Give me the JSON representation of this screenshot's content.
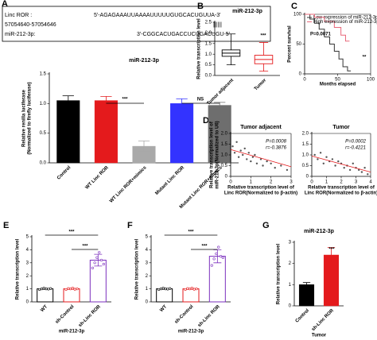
{
  "panel_labels": [
    "A",
    "B",
    "C",
    "D",
    "E",
    "F",
    "G"
  ],
  "sequence": {
    "linc_label": "Linc ROR :",
    "linc_seq": "5'-AGAGAAAUUAAAAUUUUUGUGCACUGUUA-3'",
    "site": "57054640-57054646",
    "pairing": "||||||",
    "mir_label": "miR-212-3p:",
    "mir_seq": "3'-CGGCACUGACCUCUGACUGU-5'"
  },
  "chart_data": [
    {
      "type": "bar",
      "title": "miR-212-3p",
      "ylabel": [
        "Relative renilla luciferase",
        "(Normalized to firefly luciferase)"
      ],
      "categories": [
        "Control",
        "WT Linc ROR",
        "WT Linc ROR+mimics",
        "Mutant Linc ROR",
        "Mutant Linc ROR+mimics"
      ],
      "values": [
        1.05,
        1.05,
        0.28,
        1.0,
        0.97
      ],
      "errors": [
        0.08,
        0.07,
        0.09,
        0.08,
        0.05
      ],
      "colors": [
        "#000000",
        "#e41a1c",
        "#a9a9a9",
        "#3333ff",
        "#6e6e6e"
      ],
      "ylim": [
        0,
        1.5
      ],
      "yticks": [
        {
          "value": 0,
          "label": "0.0"
        },
        0.5,
        {
          "value": 1,
          "label": "1.0"
        },
        1.5
      ],
      "annotations": [
        "***",
        "NS"
      ]
    },
    {
      "type": "box",
      "title": "miR-212-3p",
      "ylabel": [
        "Relative transcription level"
      ],
      "categories": [
        "Tumor adjacent",
        "Tumor"
      ],
      "boxes": [
        {
          "min": 0.5,
          "q1": 0.9,
          "median": 1.05,
          "q3": 1.2,
          "max": 1.95
        },
        {
          "min": 0.2,
          "q1": 0.55,
          "median": 0.75,
          "q3": 0.95,
          "max": 1.55
        }
      ],
      "colors": [
        "#000000",
        "#e41a1c"
      ],
      "ylim": [
        0,
        2.5
      ],
      "yticks": [
        {
          "value": 0,
          "label": "0.0"
        },
        0.5,
        {
          "value": 1,
          "label": "1.0"
        },
        1.5,
        {
          "value": 2,
          "label": "2.0"
        },
        2.5
      ],
      "annotations": [
        "***"
      ]
    },
    {
      "type": "line",
      "ylabel": [
        "Percent survival"
      ],
      "xlabel": [
        "Months elapsed"
      ],
      "series": [
        {
          "name": "Low expression of miR-212-3p",
          "color": "#333333",
          "x": [
            0,
            8,
            8,
            15,
            15,
            22,
            22,
            30,
            30,
            38,
            38,
            45,
            45,
            52,
            52,
            58,
            58,
            65,
            65,
            70
          ],
          "values": [
            100,
            100,
            92,
            92,
            85,
            85,
            75,
            75,
            62,
            62,
            50,
            50,
            38,
            38,
            25,
            25,
            12,
            12,
            5,
            5
          ]
        },
        {
          "name": "High expression of miR-212-3p",
          "color": "#e8687a",
          "x": [
            0,
            15,
            15,
            30,
            30,
            45,
            45,
            55,
            55,
            62,
            62,
            68
          ],
          "values": [
            100,
            100,
            95,
            95,
            88,
            88,
            78,
            78,
            65,
            65,
            55,
            55
          ]
        }
      ],
      "xlim": [
        0,
        100
      ],
      "xticks": [
        0,
        50,
        100
      ],
      "ylim": [
        0,
        100
      ],
      "yticks": [
        0,
        50,
        100
      ],
      "annotations": [
        "P=0.0071",
        "**"
      ]
    },
    {
      "type": "scatter",
      "title": "Tumor adjacent",
      "ylabel": [
        "Relative transcription level of",
        "miR-212-3p(Normalized to U6)"
      ],
      "xlabel": [
        "Relative transcription level of",
        "Linc ROR(Normalized to β-actin)"
      ],
      "x": [
        0.1,
        0.2,
        0.3,
        0.4,
        0.5,
        0.6,
        0.7,
        0.8,
        0.9,
        1.0,
        1.1,
        1.2,
        1.3,
        1.5,
        1.6,
        1.8,
        2.0,
        2.2,
        2.5,
        2.8
      ],
      "values": [
        1.4,
        1.1,
        1.6,
        0.9,
        1.2,
        1.0,
        1.3,
        0.8,
        1.1,
        0.7,
        0.9,
        1.0,
        0.6,
        0.8,
        0.5,
        0.7,
        0.6,
        0.4,
        0.5,
        0.3
      ],
      "trendline": {
        "x": [
          0,
          3
        ],
        "values": [
          1.25,
          0.45
        ]
      },
      "color": "#555555",
      "trend_color": "#e41a1c",
      "xlim": [
        0,
        3
      ],
      "xticks": [
        0,
        1,
        2,
        3
      ],
      "ylim": [
        0,
        2
      ],
      "yticks": [
        0,
        0.5,
        {
          "value": 1,
          "label": "1.0"
        },
        1.5,
        {
          "value": 2,
          "label": "2.0"
        }
      ],
      "annotations": [
        "P=0.0008",
        "r=-0.3876"
      ]
    },
    {
      "type": "scatter",
      "title": "Tumor",
      "ylabel": [
        "Relative transcription level of",
        "miR-212-3p(Normalized to U6)"
      ],
      "xlabel": [
        "Relative transcription level of",
        "Linc ROR(Normalized to β-actin)"
      ],
      "x": [
        0.2,
        0.4,
        0.6,
        0.8,
        1.0,
        1.2,
        1.4,
        1.6,
        1.8,
        2.0,
        2.2,
        2.4,
        2.6,
        2.8,
        3.0,
        3.2,
        3.4,
        3.6,
        3.8
      ],
      "values": [
        1.0,
        0.8,
        1.1,
        0.6,
        0.9,
        0.7,
        0.8,
        0.5,
        0.7,
        0.6,
        0.4,
        0.5,
        0.3,
        0.6,
        0.4,
        0.3,
        0.2,
        0.4,
        0.1
      ],
      "trendline": {
        "x": [
          0,
          4
        ],
        "values": [
          0.95,
          0.2
        ]
      },
      "color": "#555555",
      "trend_color": "#e41a1c",
      "xlim": [
        0,
        4
      ],
      "xticks": [
        0,
        1,
        2,
        3,
        4
      ],
      "ylim": [
        0,
        2
      ],
      "yticks": [
        0,
        0.5,
        {
          "value": 1,
          "label": "1.0"
        },
        1.5,
        {
          "value": 2,
          "label": "2.0"
        }
      ],
      "annotations": [
        "P=0.0002",
        "r=-0.4221"
      ]
    },
    {
      "type": "bar",
      "hollow": true,
      "ylabel": [
        "Relative transcription level"
      ],
      "xlabel": [
        "miR-212-3p"
      ],
      "categories": [
        "WT",
        "sh-Control",
        "sh-Linc ROR"
      ],
      "values": [
        1.0,
        1.0,
        3.2
      ],
      "errors": [
        0.04,
        0.04,
        0.45
      ],
      "points": [
        [
          0.95,
          1.0,
          1.05,
          1.0,
          0.98,
          1.02
        ],
        [
          0.95,
          1.02,
          1.0,
          1.05,
          0.97,
          1.0
        ],
        [
          2.6,
          3.0,
          3.4,
          3.8,
          3.2,
          2.9
        ]
      ],
      "colors": [
        "#000000",
        "#e41a1c",
        "#7b2fbe"
      ],
      "ylim": [
        0,
        5
      ],
      "yticks": [
        0,
        1,
        2,
        3,
        4,
        5
      ],
      "annotations": [
        "***",
        "***"
      ]
    },
    {
      "type": "bar",
      "hollow": true,
      "ylabel": [
        "Relative transcription level"
      ],
      "xlabel": [
        "miR-212-3p"
      ],
      "categories": [
        "WT",
        "sh-Control",
        "sh-Linc ROR"
      ],
      "values": [
        1.0,
        1.0,
        3.5
      ],
      "errors": [
        0.04,
        0.04,
        0.5
      ],
      "points": [
        [
          0.95,
          1.0,
          1.05,
          1.0,
          0.98,
          1.02
        ],
        [
          0.95,
          1.02,
          1.0,
          1.05,
          0.97,
          1.0
        ],
        [
          2.8,
          3.3,
          3.7,
          4.2,
          3.5,
          3.4
        ]
      ],
      "colors": [
        "#000000",
        "#e41a1c",
        "#7b2fbe"
      ],
      "ylim": [
        0,
        5
      ],
      "yticks": [
        0,
        1,
        2,
        3,
        4,
        5
      ],
      "annotations": [
        "***",
        "***"
      ]
    },
    {
      "type": "bar",
      "title": "miR-212-3p",
      "ylabel": [
        "Relative transcription level"
      ],
      "xlabel": [
        "Tumor"
      ],
      "categories": [
        "Control",
        "sh-Linc ROR"
      ],
      "values": [
        1.0,
        2.4
      ],
      "errors": [
        0.1,
        0.35
      ],
      "colors": [
        "#000000",
        "#e41a1c"
      ],
      "ylim": [
        0,
        3
      ],
      "yticks": [
        0,
        1,
        2,
        3
      ],
      "annotations": [
        "***"
      ]
    }
  ]
}
